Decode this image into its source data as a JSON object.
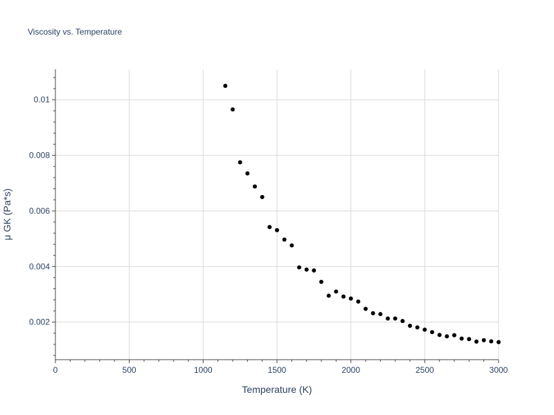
{
  "chart_data": {
    "type": "scatter",
    "title": "Viscosity vs. Temperature",
    "xlabel": "Temperature (K)",
    "ylabel": "μ GK (Pa*s)",
    "xlim": [
      0,
      3000
    ],
    "ylim": [
      0.00065,
      0.0111
    ],
    "x_ticks": [
      0,
      500,
      1000,
      1500,
      2000,
      2500,
      3000
    ],
    "x_tick_labels": [
      "0",
      "500",
      "1000",
      "1500",
      "2000",
      "2500",
      "3000"
    ],
    "y_ticks": [
      0.002,
      0.004,
      0.006,
      0.008,
      0.01
    ],
    "y_tick_labels": [
      "0.002",
      "0.004",
      "0.006",
      "0.008",
      "0.01"
    ],
    "grid": true,
    "marker_color": "#000000",
    "x": [
      1150,
      1200,
      1250,
      1300,
      1350,
      1400,
      1450,
      1500,
      1550,
      1600,
      1650,
      1700,
      1750,
      1800,
      1850,
      1900,
      1950,
      2000,
      2050,
      2100,
      2150,
      2200,
      2250,
      2300,
      2350,
      2400,
      2450,
      2500,
      2550,
      2600,
      2650,
      2700,
      2750,
      2800,
      2850,
      2900,
      2950,
      3000
    ],
    "y": [
      0.0105,
      0.00965,
      0.00775,
      0.00735,
      0.00688,
      0.0065,
      0.00542,
      0.00531,
      0.00497,
      0.00476,
      0.00397,
      0.00389,
      0.00386,
      0.00345,
      0.00295,
      0.0031,
      0.00292,
      0.00285,
      0.00274,
      0.00248,
      0.00232,
      0.00229,
      0.00213,
      0.00213,
      0.00204,
      0.00187,
      0.00181,
      0.00173,
      0.00164,
      0.00154,
      0.00149,
      0.00153,
      0.00141,
      0.00139,
      0.0013,
      0.00135,
      0.00131,
      0.00128
    ]
  }
}
